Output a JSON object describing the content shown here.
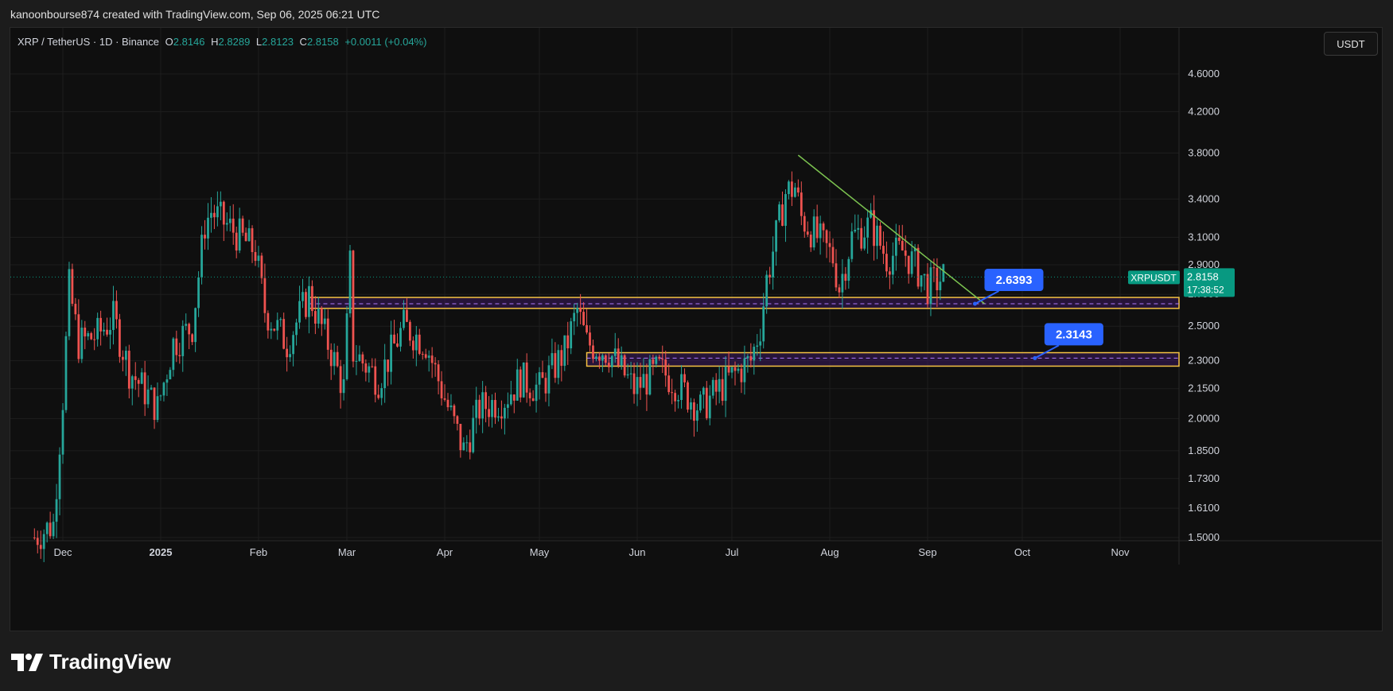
{
  "header": {
    "credit": "kanoonbourse874 created with TradingView.com, Sep 06, 2025 06:21 UTC"
  },
  "legend": {
    "symbol": "XRP / TetherUS · 1D · Binance",
    "o_label": "O",
    "o": "2.8146",
    "h_label": "H",
    "h": "2.8289",
    "l_label": "L",
    "l": "2.8123",
    "c_label": "C",
    "c": "2.8158",
    "change": "+0.0011 (+0.04%)"
  },
  "currency_button": "USDT",
  "footer": {
    "brand": "TradingView"
  },
  "colors": {
    "up": "#26a69a",
    "down": "#ef5350",
    "zone_border": "#f5c242",
    "zone_fill": "#3a1a5c",
    "trendline": "#7cc350",
    "callout": "#2962ff",
    "price_tag": "#089981"
  },
  "chart_data": {
    "type": "candlestick",
    "title": "",
    "y_scale": "log",
    "y_ticks": [
      "4.6000",
      "4.2000",
      "3.8000",
      "3.4000",
      "3.1000",
      "2.9000",
      "2.7000",
      "2.5000",
      "2.3000",
      "2.1500",
      "2.0000",
      "1.8500",
      "1.7300",
      "1.6100",
      "1.5000"
    ],
    "x_ticks": [
      {
        "label": "Dec",
        "date": "2024-12-01"
      },
      {
        "label": "2025",
        "date": "2025-01-01"
      },
      {
        "label": "Feb",
        "date": "2025-02-01"
      },
      {
        "label": "Mar",
        "date": "2025-03-01"
      },
      {
        "label": "Apr",
        "date": "2025-04-01"
      },
      {
        "label": "May",
        "date": "2025-05-01"
      },
      {
        "label": "Jun",
        "date": "2025-06-01"
      },
      {
        "label": "Jul",
        "date": "2025-07-01"
      },
      {
        "label": "Aug",
        "date": "2025-08-01"
      },
      {
        "label": "Sep",
        "date": "2025-09-01"
      },
      {
        "label": "Oct",
        "date": "2025-10-01"
      },
      {
        "label": "Nov",
        "date": "2025-11-01"
      }
    ],
    "grid": true,
    "current_price": {
      "value": 2.8158,
      "symbol": "XRPUSDT",
      "price_label": "2.8158",
      "countdown": "17:38:52"
    },
    "keypoints": [
      {
        "date": "2024-11-22",
        "price": 1.5
      },
      {
        "date": "2024-11-28",
        "price": 1.55
      },
      {
        "date": "2024-12-01",
        "price": 2.1
      },
      {
        "date": "2024-12-03",
        "price": 2.75
      },
      {
        "date": "2024-12-06",
        "price": 2.4
      },
      {
        "date": "2024-12-12",
        "price": 2.45
      },
      {
        "date": "2024-12-17",
        "price": 2.55
      },
      {
        "date": "2024-12-22",
        "price": 2.25
      },
      {
        "date": "2024-12-31",
        "price": 2.05
      },
      {
        "date": "2025-01-05",
        "price": 2.4
      },
      {
        "date": "2025-01-11",
        "price": 2.5
      },
      {
        "date": "2025-01-15",
        "price": 3.2
      },
      {
        "date": "2025-01-17",
        "price": 3.3
      },
      {
        "date": "2025-01-24",
        "price": 3.15
      },
      {
        "date": "2025-01-31",
        "price": 3.0
      },
      {
        "date": "2025-02-03",
        "price": 2.6
      },
      {
        "date": "2025-02-10",
        "price": 2.4
      },
      {
        "date": "2025-02-17",
        "price": 2.7
      },
      {
        "date": "2025-02-24",
        "price": 2.35
      },
      {
        "date": "2025-02-28",
        "price": 2.15
      },
      {
        "date": "2025-03-02",
        "price": 2.9
      },
      {
        "date": "2025-03-03",
        "price": 2.35
      },
      {
        "date": "2025-03-11",
        "price": 2.2
      },
      {
        "date": "2025-03-19",
        "price": 2.5
      },
      {
        "date": "2025-03-26",
        "price": 2.4
      },
      {
        "date": "2025-04-01",
        "price": 2.1
      },
      {
        "date": "2025-04-07",
        "price": 1.85
      },
      {
        "date": "2025-04-12",
        "price": 2.05
      },
      {
        "date": "2025-04-20",
        "price": 2.1
      },
      {
        "date": "2025-04-25",
        "price": 2.2
      },
      {
        "date": "2025-05-01",
        "price": 2.15
      },
      {
        "date": "2025-05-09",
        "price": 2.35
      },
      {
        "date": "2025-05-13",
        "price": 2.6
      },
      {
        "date": "2025-05-16",
        "price": 2.4
      },
      {
        "date": "2025-05-23",
        "price": 2.35
      },
      {
        "date": "2025-05-31",
        "price": 2.15
      },
      {
        "date": "2025-06-08",
        "price": 2.25
      },
      {
        "date": "2025-06-12",
        "price": 2.2
      },
      {
        "date": "2025-06-21",
        "price": 2.05
      },
      {
        "date": "2025-06-30",
        "price": 2.2
      },
      {
        "date": "2025-07-07",
        "price": 2.3
      },
      {
        "date": "2025-07-10",
        "price": 2.5
      },
      {
        "date": "2025-07-12",
        "price": 2.8
      },
      {
        "date": "2025-07-18",
        "price": 3.45
      },
      {
        "date": "2025-07-21",
        "price": 3.5
      },
      {
        "date": "2025-07-23",
        "price": 3.25
      },
      {
        "date": "2025-07-28",
        "price": 3.1
      },
      {
        "date": "2025-08-02",
        "price": 2.95
      },
      {
        "date": "2025-08-04",
        "price": 2.75
      },
      {
        "date": "2025-08-08",
        "price": 3.1
      },
      {
        "date": "2025-08-14",
        "price": 3.2
      },
      {
        "date": "2025-08-19",
        "price": 2.95
      },
      {
        "date": "2025-08-24",
        "price": 3.0
      },
      {
        "date": "2025-08-28",
        "price": 2.9
      },
      {
        "date": "2025-09-01",
        "price": 2.75
      },
      {
        "date": "2025-09-06",
        "price": 2.8158
      }
    ],
    "drawings": {
      "zones": [
        {
          "start": "2025-02-17",
          "top": 2.68,
          "bottom": 2.61,
          "mid": 2.6393
        },
        {
          "start": "2025-05-16",
          "top": 2.345,
          "bottom": 2.27,
          "mid": 2.3143
        }
      ],
      "trendline": [
        {
          "date": "2025-07-22",
          "price": 3.78
        },
        {
          "date": "2025-09-19",
          "price": 2.64
        }
      ],
      "callouts": [
        {
          "label": "2.6393",
          "target_date": "2025-09-16",
          "target_price": 2.6393
        },
        {
          "label": "2.3143",
          "target_date": "2025-10-05",
          "target_price": 2.3143
        }
      ]
    }
  }
}
